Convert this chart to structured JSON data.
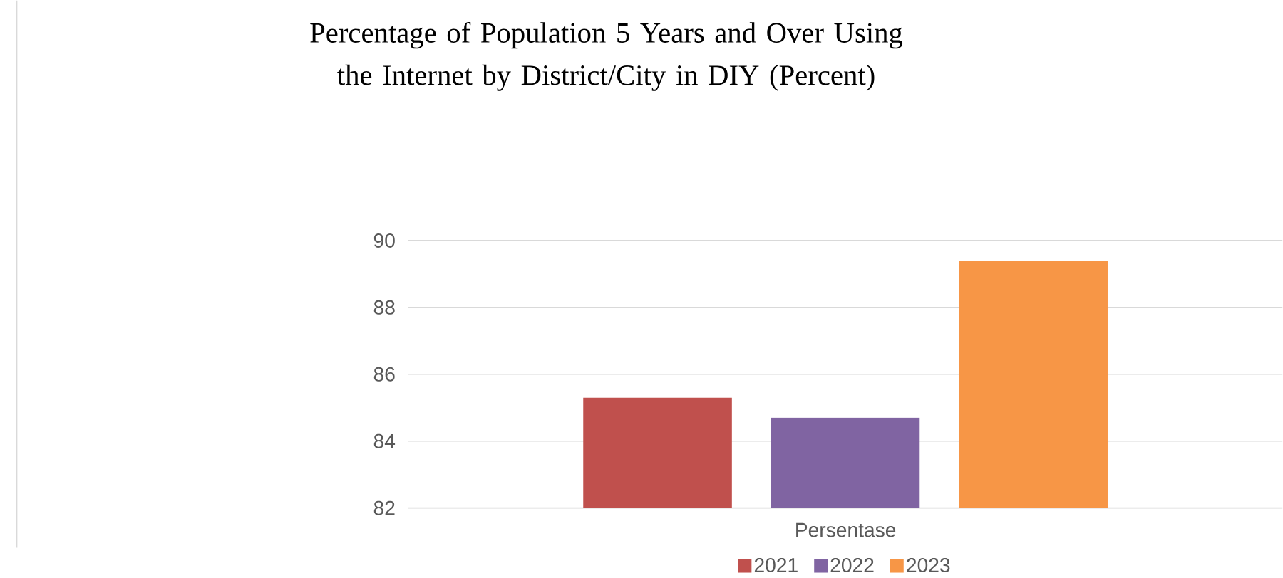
{
  "chart_data": {
    "type": "bar",
    "title": "Percentage of Population 5 Years and Over Using the Internet by District/City in DIY (Percent)",
    "categories": [
      "Persentase"
    ],
    "series": [
      {
        "name": "2021",
        "color": "#c0504d",
        "values": [
          85.3
        ]
      },
      {
        "name": "2022",
        "color": "#8064a2",
        "values": [
          84.7
        ]
      },
      {
        "name": "2023",
        "color": "#f79646",
        "values": [
          89.4
        ]
      }
    ],
    "ylim": [
      82,
      90
    ],
    "yticks": [
      82,
      84,
      86,
      88,
      90
    ],
    "grid": "y",
    "legend": "bottom"
  }
}
